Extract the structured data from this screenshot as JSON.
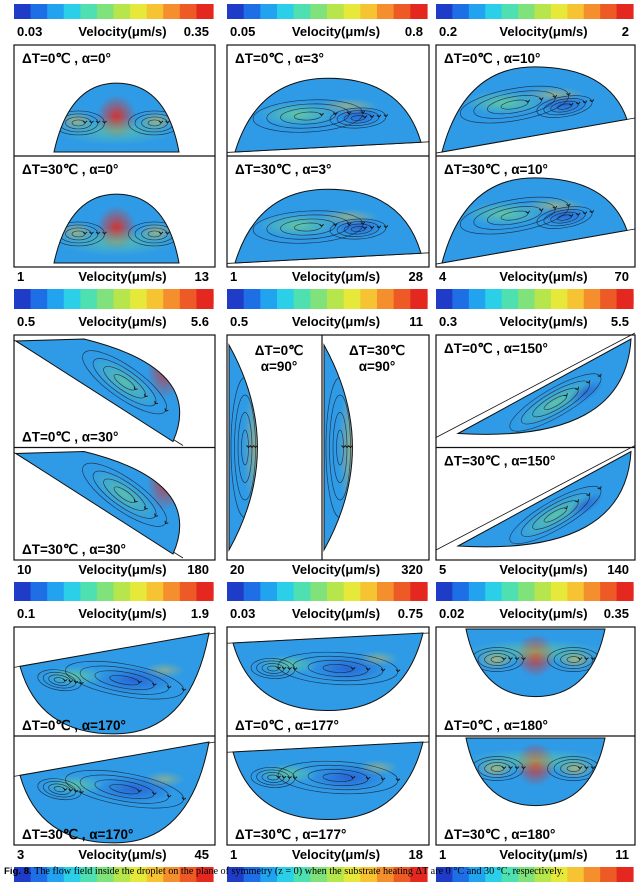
{
  "figure": {
    "caption_label": "Fig. 8.",
    "caption_text": "The flow field inside the droplet on the plane of symmetry (z = 0) when the substrate heating ΔT are 0 °C and 30 °C, respectively.",
    "colorbar_title": "Velocity(μm/s)",
    "colormap": [
      "#1f3cc8",
      "#1e6fe6",
      "#21a3f0",
      "#2bd0e8",
      "#4ee0b0",
      "#7fe27a",
      "#b7e64c",
      "#e6e83a",
      "#f6c433",
      "#f58e2d",
      "#ee5a26",
      "#e5281f"
    ],
    "columns": [
      {
        "name": "col1",
        "groups": [
          {
            "top_scale": [
              "0.03",
              "0.35"
            ],
            "bottom_scale": [
              "1",
              "13"
            ],
            "labels": [
              "ΔT=0℃ , α=0°",
              "ΔT=30℃ , α=0°"
            ]
          },
          {
            "top_scale": [
              "0.5",
              "5.6"
            ],
            "bottom_scale": [
              "10",
              "180"
            ],
            "labels": [
              "ΔT=0℃ , α=30°",
              "ΔT=30℃ , α=30°"
            ]
          },
          {
            "top_scale": [
              "0.1",
              "1.9"
            ],
            "bottom_scale": [
              "3",
              "45"
            ],
            "labels": [
              "ΔT=0℃ , α=170°",
              "ΔT=30℃ , α=170°"
            ]
          }
        ]
      },
      {
        "name": "col2",
        "groups": [
          {
            "top_scale": [
              "0.05",
              "0.8"
            ],
            "bottom_scale": [
              "1",
              "28"
            ],
            "labels": [
              "ΔT=0℃ , α=3°",
              "ΔT=30℃ , α=3°"
            ]
          },
          {
            "top_scale": [
              "0.5",
              "11"
            ],
            "bottom_scale": [
              "20",
              "320"
            ],
            "labels": [
              "ΔT=0℃",
              "α=90°",
              "ΔT=30℃",
              "α=90°"
            ]
          },
          {
            "top_scale": [
              "0.03",
              "0.75"
            ],
            "bottom_scale": [
              "1",
              "18"
            ],
            "labels": [
              "ΔT=0℃ , α=177°",
              "ΔT=30℃ , α=177°"
            ]
          }
        ]
      },
      {
        "name": "col3",
        "groups": [
          {
            "top_scale": [
              "0.2",
              "2"
            ],
            "bottom_scale": [
              "4",
              "70"
            ],
            "labels": [
              "ΔT=0℃ , α=10°",
              "ΔT=30℃ , α=10°"
            ]
          },
          {
            "top_scale": [
              "0.3",
              "5.5"
            ],
            "bottom_scale": [
              "5",
              "140"
            ],
            "labels": [
              "ΔT=0℃ , α=150°",
              "ΔT=30℃ , α=150°"
            ]
          },
          {
            "top_scale": [
              "0.02",
              "0.35"
            ],
            "bottom_scale": [
              "1",
              "11"
            ],
            "labels": [
              "ΔT=0℃ , α=180°",
              "ΔT=30℃ , α=180°"
            ]
          }
        ]
      }
    ]
  }
}
